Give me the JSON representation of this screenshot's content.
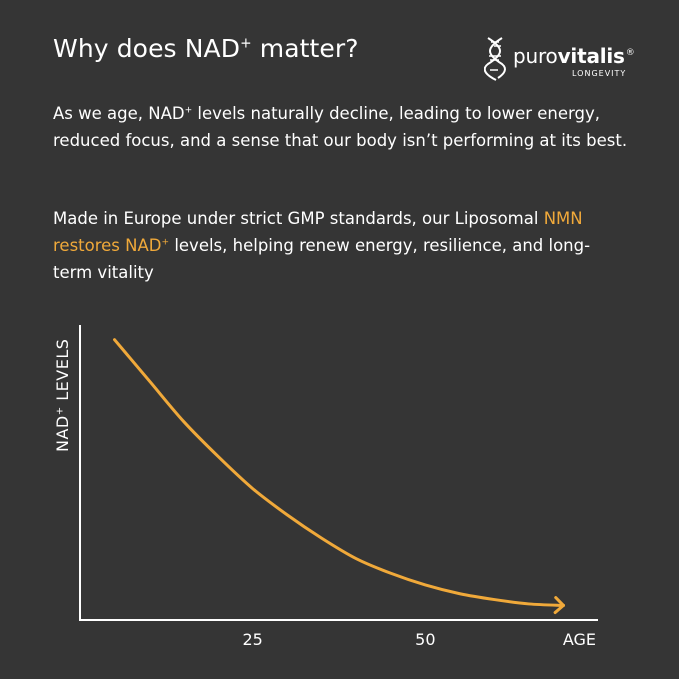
{
  "title": {
    "text": "Why does NAD",
    "sup": "+",
    "rest": " matter?"
  },
  "logo": {
    "brand_light": "puro",
    "brand_bold": "vitalis",
    "reg": "®",
    "sub": "LONGEVITY",
    "icon": "dna-helix-icon"
  },
  "paragraph1": {
    "a": "As we age, NAD",
    "sup": "+",
    "b": " levels naturally decline, leading to lower energy, reduced focus, and a sense that our body isn’t performing at its best."
  },
  "paragraph2": {
    "a": "Made in Europe under strict GMP standards, our Liposomal ",
    "highlight": "NMN restores NAD",
    "highlight_sup": "+",
    "b": " levels, helping renew energy, resilience, and long-term vitality"
  },
  "colors": {
    "background": "#353535",
    "accent": "#f0a93a",
    "text": "#ffffff"
  },
  "chart_data": {
    "type": "line",
    "ylabel": "NAD⁺ LEVELS",
    "xlabel": "AGE",
    "x_ticks": [
      {
        "value": 25,
        "label": "25"
      },
      {
        "value": 50,
        "label": "50"
      }
    ],
    "xlim": [
      0,
      75
    ],
    "ylim": [
      0,
      100
    ],
    "series": [
      {
        "color": "#f0a93a",
        "points": [
          [
            5,
            96
          ],
          [
            10,
            82
          ],
          [
            15,
            68
          ],
          [
            20,
            56
          ],
          [
            25,
            45
          ],
          [
            30,
            36
          ],
          [
            35,
            28
          ],
          [
            40,
            21
          ],
          [
            45,
            16
          ],
          [
            50,
            12
          ],
          [
            55,
            9
          ],
          [
            60,
            7
          ],
          [
            65,
            5.5
          ],
          [
            70,
            5
          ]
        ]
      }
    ],
    "arrow_end": true,
    "grid": false,
    "legend": "none"
  }
}
